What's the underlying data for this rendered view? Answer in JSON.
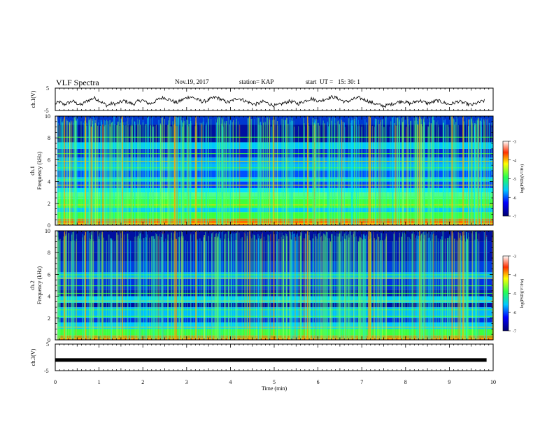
{
  "header": {
    "title": "VLF Spectra",
    "date": "Nov.19, 2017",
    "station": "station= KAP",
    "start": "start  UT =   15: 30: 1"
  },
  "chart_data": [
    {
      "type": "line",
      "name": "ch1-waveform",
      "ylabel": "ch.1(V)",
      "ylim": [
        -5,
        5
      ],
      "yticks": [
        "5",
        "-5"
      ],
      "xlim": [
        0,
        10
      ],
      "values": [
        -2.0,
        -1.2,
        -2.4,
        -1.6,
        -0.8,
        -1.8,
        -2.6,
        -1.1,
        -0.2,
        0.6,
        -0.4,
        -1.7,
        -2.8,
        -1.9,
        -2.1,
        -1.3,
        -0.6,
        -1.5,
        -2.2,
        -1.0,
        -0.3,
        -1.4,
        -2.0,
        -0.9,
        0.2,
        0.8,
        0.1,
        -0.7,
        -1.6,
        -0.5,
        0.4,
        1.2,
        0.6,
        -0.3,
        -1.1,
        -0.6,
        0.3,
        0.9,
        0.2,
        -0.8,
        -1.4,
        -0.4,
        0.5,
        0.0,
        -0.9,
        -1.6,
        -2.3,
        -1.8,
        -1.0,
        -1.7,
        -2.5,
        -2.9,
        -2.2,
        -1.5,
        -0.8,
        -1.3,
        -2.0,
        -1.2,
        -0.4,
        0.3,
        -0.2,
        -0.9,
        -0.1,
        0.6,
        1.1,
        0.5,
        -0.4,
        -1.2,
        -0.6,
        0.2,
        0.7,
        0.1,
        -0.7,
        -1.5,
        -2.1,
        -2.7,
        -3.0,
        -2.4,
        -1.9,
        -1.3,
        -0.7,
        -1.4,
        -2.0,
        -1.1,
        -0.5,
        -1.2,
        -1.8,
        -1.3,
        -0.6,
        -1.0,
        -1.7,
        -2.3,
        -1.6,
        -0.9,
        -1.5,
        -2.1,
        -2.6,
        -1.9,
        -1.2,
        -0.7
      ],
      "annotation": "ch1_waveform"
    },
    {
      "type": "heatmap",
      "name": "ch1-spectrogram",
      "ylabel": "ch.1\nFrequency (kHz)",
      "xlim": [
        0,
        10
      ],
      "ylim": [
        0,
        10
      ],
      "yticks": [
        0,
        2,
        4,
        6,
        8,
        10
      ],
      "colorbar": {
        "label": "log(PSD)(V²/Hz)",
        "min": -7,
        "max": -3,
        "ticks": [
          -3,
          -4,
          -5,
          -6,
          -7
        ]
      }
    },
    {
      "type": "heatmap",
      "name": "ch2-spectrogram",
      "ylabel": "ch.2\nFrequency (kHz)",
      "xlim": [
        0,
        10
      ],
      "ylim": [
        0,
        10
      ],
      "yticks": [
        0,
        2,
        4,
        6,
        8,
        10
      ],
      "colorbar": {
        "label": "log(PSD)(V²/Hz)",
        "min": -7,
        "max": -3,
        "ticks": [
          -3,
          -4,
          -5,
          -6,
          -7
        ]
      }
    },
    {
      "type": "line",
      "name": "ch3-waveform",
      "ylabel": "ch.3(V)",
      "ylim": [
        -5,
        5
      ],
      "yticks": [
        "5",
        "-5"
      ],
      "xlim": [
        0,
        10
      ],
      "values": [
        -1,
        -1
      ],
      "xlabel": "Time (min)",
      "xticks": [
        0,
        1,
        2,
        3,
        4,
        5,
        6,
        7,
        8,
        9,
        10
      ]
    }
  ],
  "colors": {
    "low": "#00008b",
    "mid": "#00c8ff",
    "band": "#3cff3c",
    "high": "#ff0000"
  }
}
